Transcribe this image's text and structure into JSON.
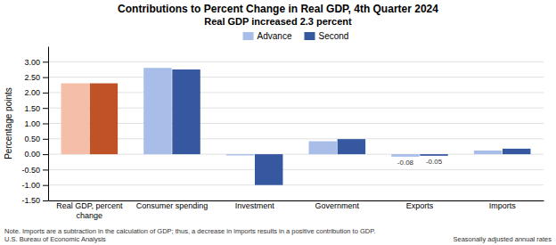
{
  "chart_data": {
    "type": "bar",
    "title": "Contributions to Percent Change in Real GDP, 4th Quarter 2024",
    "subtitle": "Real GDP increased 2.3 percent",
    "categories": [
      "Real GDP, percent\nchange",
      "Consumer spending",
      "Investment",
      "Government",
      "Exports",
      "Imports"
    ],
    "series": [
      {
        "name": "Advance",
        "color": "#a8bee8",
        "colors": [
          "#f4bea8",
          "#a8bee8",
          "#a8bee8",
          "#a8bee8",
          "#a8bee8",
          "#a8bee8"
        ],
        "values": [
          2.3,
          2.8,
          -0.04,
          0.42,
          -0.08,
          0.12
        ],
        "value_labels": [
          null,
          null,
          null,
          null,
          "-0.08",
          null
        ]
      },
      {
        "name": "Second",
        "color": "#3558a0",
        "colors": [
          "#c05228",
          "#3558a0",
          "#3558a0",
          "#3558a0",
          "#3558a0",
          "#3558a0"
        ],
        "values": [
          2.3,
          2.75,
          -1.0,
          0.49,
          -0.05,
          0.18
        ],
        "value_labels": [
          null,
          null,
          null,
          null,
          "-0.05",
          null
        ]
      }
    ],
    "ylabel": "Percentage points",
    "ylim": [
      -1.5,
      3.5
    ],
    "yticks": [
      {
        "value": -1.5,
        "label": "-1.50"
      },
      {
        "value": -1.0,
        "label": "-1.00"
      },
      {
        "value": -0.5,
        "label": "-0.50"
      },
      {
        "value": 0.0,
        "label": "0.00"
      },
      {
        "value": 0.5,
        "label": "0.50"
      },
      {
        "value": 1.0,
        "label": "1.00"
      },
      {
        "value": 1.5,
        "label": "1.50"
      },
      {
        "value": 2.0,
        "label": "2.00"
      },
      {
        "value": 2.5,
        "label": "2.50"
      },
      {
        "value": 3.0,
        "label": "3.00"
      }
    ],
    "grid": true,
    "legend": "top",
    "notes": [
      "Note. Imports are a subtraction in the calculation of GDP; thus, a decrease in imports results in a positive contribution to GDP.",
      "U.S. Bureau of Economic Analysis",
      "Seasonally adjusted annual rates"
    ]
  }
}
